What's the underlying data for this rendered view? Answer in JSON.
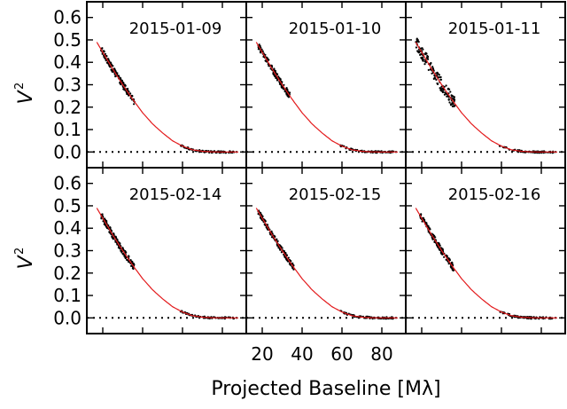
{
  "figure": {
    "ylabel": "V",
    "ylabel_sup": "2",
    "xlabel": "Projected Baseline [Mλ]"
  },
  "chart_data": {
    "type": "scatter",
    "layout": "2x3 panels, shared axes",
    "xlim": [
      12,
      92
    ],
    "ylim": [
      -0.07,
      0.67
    ],
    "xticks": [
      20,
      40,
      60,
      80
    ],
    "xtick_labels": [
      "20",
      "40",
      "60",
      "80"
    ],
    "yticks": [
      0.0,
      0.1,
      0.2,
      0.3,
      0.4,
      0.5,
      0.6
    ],
    "ytick_labels": [
      "0.0",
      "0.1",
      "0.2",
      "0.3",
      "0.4",
      "0.5",
      "0.6"
    ],
    "xlabel": "Projected Baseline [Mλ]",
    "ylabel": "V²",
    "model_curve": {
      "color": "#e31a1c",
      "x": [
        17,
        20,
        25,
        30,
        35,
        40,
        45,
        50,
        55,
        60,
        65,
        70,
        75,
        80,
        85,
        88
      ],
      "y": [
        0.49,
        0.445,
        0.37,
        0.3,
        0.235,
        0.175,
        0.125,
        0.085,
        0.05,
        0.026,
        0.01,
        0.003,
        0.0005,
        0.0,
        0.0,
        0.0
      ]
    },
    "zero_line": {
      "y": 0.0,
      "style": "dotted"
    },
    "panels": [
      {
        "label": "2015-01-09",
        "clusters": [
          {
            "x": [
              19,
              36
            ],
            "scatter": 0.015
          },
          {
            "x": [
              59,
              86
            ],
            "scatter": 0.004
          }
        ]
      },
      {
        "label": "2015-01-10",
        "clusters": [
          {
            "x": [
              18,
              34
            ],
            "scatter": 0.015
          },
          {
            "x": [
              59,
              86
            ],
            "scatter": 0.004
          }
        ]
      },
      {
        "label": "2015-01-11",
        "clusters": [
          {
            "x": [
              17,
              37
            ],
            "scatter": 0.03
          },
          {
            "x": [
              59,
              86
            ],
            "scatter": 0.004
          }
        ]
      },
      {
        "label": "2015-02-14",
        "clusters": [
          {
            "x": [
              19,
              36
            ],
            "scatter": 0.015
          },
          {
            "x": [
              59,
              86
            ],
            "scatter": 0.004
          }
        ]
      },
      {
        "label": "2015-02-15",
        "clusters": [
          {
            "x": [
              18,
              36
            ],
            "scatter": 0.012
          },
          {
            "x": [
              59,
              86
            ],
            "scatter": 0.004
          }
        ]
      },
      {
        "label": "2015-02-16",
        "clusters": [
          {
            "x": [
              19,
              36
            ],
            "scatter": 0.015
          },
          {
            "x": [
              59,
              86
            ],
            "scatter": 0.004
          }
        ]
      }
    ]
  }
}
